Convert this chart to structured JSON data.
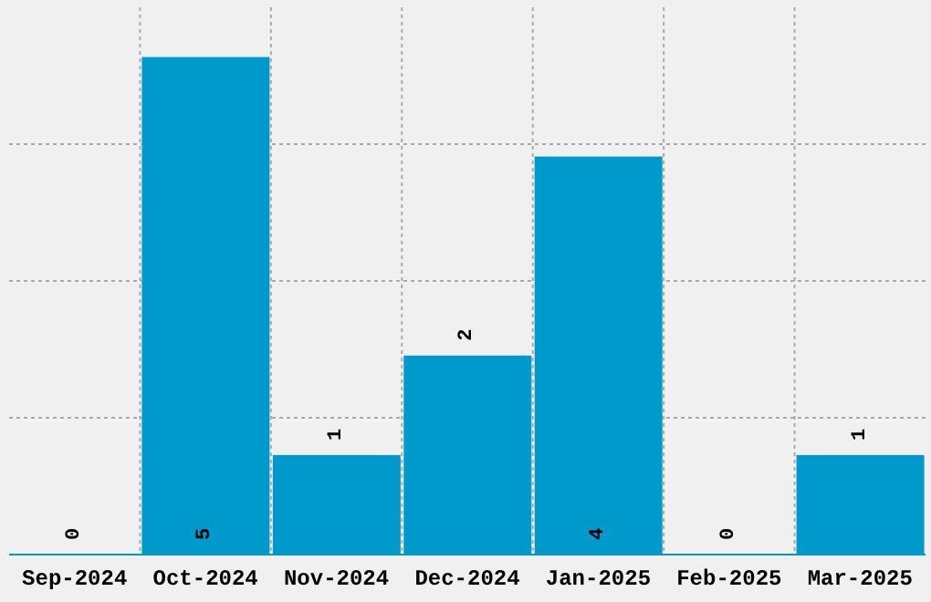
{
  "chart_data": {
    "type": "bar",
    "categories": [
      "Sep-2024",
      "Oct-2024",
      "Nov-2024",
      "Dec-2024",
      "Jan-2025",
      "Feb-2025",
      "Mar-2025"
    ],
    "values": [
      0,
      5,
      1,
      2,
      4,
      0,
      1
    ],
    "color": "#0099cc",
    "data_labels": true,
    "ylim": [
      0,
      5.5
    ],
    "grid": true,
    "tick_labels": "x"
  }
}
